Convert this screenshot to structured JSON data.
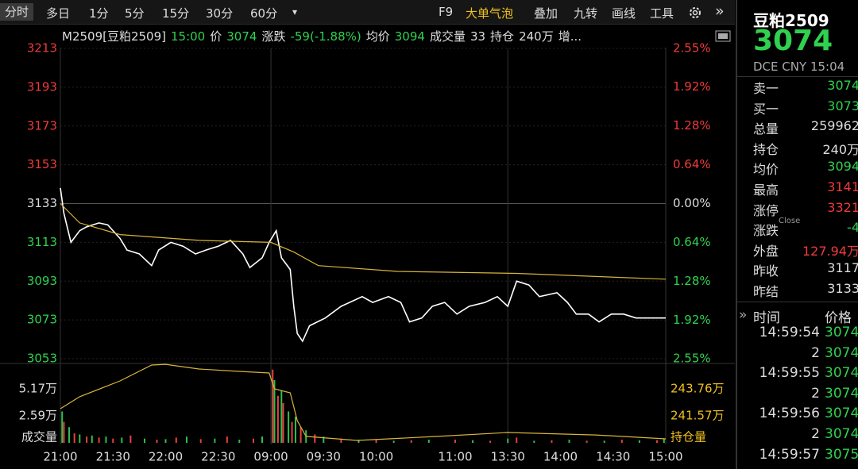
{
  "toolbar": {
    "left": [
      "分时",
      "多日",
      "1分",
      "5分",
      "15分",
      "30分",
      "60分",
      "▾"
    ],
    "right": [
      "F9",
      "大单气泡",
      "叠加",
      "九转",
      "画线",
      "工具"
    ],
    "more": "»"
  },
  "info": [
    "M2509[豆粕2509]",
    "15:00",
    "价",
    "3074",
    "涨跌",
    "-59(-1.88%)",
    "均价",
    "3094",
    "成交量",
    "33",
    "持仓",
    "240万",
    "增..."
  ],
  "chart_data": [
    {
      "type": "line",
      "ylim": [
        3053,
        3213
      ],
      "yticks": [
        3213,
        3193,
        3173,
        3153,
        3133,
        3113,
        3093,
        3073,
        3053
      ],
      "y2lim": [
        -2.55,
        2.55
      ],
      "y2ticks": [
        {
          "value": 2.55,
          "label": "2.55%"
        },
        {
          "value": 1.92,
          "label": "1.92%"
        },
        {
          "value": 1.28,
          "label": "1.28%"
        },
        {
          "value": 0.64,
          "label": "0.64%"
        },
        {
          "value": 0,
          "label": "0.00%"
        },
        {
          "value": -0.64,
          "label": "0.64%"
        },
        {
          "value": -1.28,
          "label": "1.28%"
        },
        {
          "value": -1.92,
          "label": "1.92%"
        },
        {
          "value": -2.55,
          "label": "2.55%"
        }
      ],
      "xlim": [
        0,
        345
      ],
      "grid": true,
      "series": [
        {
          "color": "#ffffff",
          "x": [
            0,
            2,
            6,
            11,
            15,
            22,
            27,
            34,
            38,
            45,
            52,
            56,
            63,
            70,
            77,
            83,
            90,
            97,
            104,
            108,
            115,
            119,
            123,
            126,
            131,
            133,
            135,
            138,
            142,
            151,
            160,
            172,
            178,
            187,
            194,
            199,
            206,
            212,
            219,
            226,
            233,
            242,
            249,
            255,
            260,
            267,
            273,
            283,
            289,
            294,
            301,
            307,
            314,
            321,
            328,
            337,
            345
          ],
          "values": [
            3141,
            3128,
            3113,
            3119,
            3121,
            3123,
            3122,
            3115,
            3109,
            3107,
            3101,
            3109,
            3113,
            3111,
            3107,
            3109,
            3111,
            3114,
            3107,
            3100,
            3105,
            3113,
            3119,
            3105,
            3099,
            3080,
            3066,
            3062,
            3070,
            3074,
            3080,
            3085,
            3082,
            3085,
            3082,
            3072,
            3074,
            3080,
            3082,
            3076,
            3080,
            3082,
            3085,
            3080,
            3093,
            3091,
            3085,
            3087,
            3082,
            3076,
            3076,
            3072,
            3076,
            3076,
            3074,
            3074,
            3074
          ]
        },
        {
          "color": "#d8b43a",
          "x": [
            0,
            11,
            34,
            79,
            120,
            133,
            147,
            192,
            260,
            345
          ],
          "values": [
            3133,
            3123,
            3117,
            3114,
            3113,
            3108,
            3101,
            3098,
            3097,
            3094
          ]
        }
      ]
    },
    {
      "type": "bar",
      "ylabel": "成交量",
      "y2label": "持仓量",
      "ylim": [
        0,
        75900
      ],
      "yticks": [
        {
          "value": 51700,
          "label": "5.17万"
        },
        {
          "value": 25900,
          "label": "2.59万"
        }
      ],
      "y2lim": [
        2393800,
        2458200
      ],
      "y2ticks": [
        {
          "value": 2437600,
          "label": "243.76万"
        },
        {
          "value": 2415700,
          "label": "241.57万"
        }
      ],
      "xlim": [
        0,
        345
      ],
      "xticks": [
        {
          "value": 0,
          "label": "21:00"
        },
        {
          "value": 30,
          "label": "21:30"
        },
        {
          "value": 60,
          "label": "22:00"
        },
        {
          "value": 90,
          "label": "22:30"
        },
        {
          "value": 120,
          "label": "09:00"
        },
        {
          "value": 150,
          "label": "09:30"
        },
        {
          "value": 180,
          "label": "10:00"
        },
        {
          "value": 225,
          "label": "11:00"
        },
        {
          "value": 255,
          "label": "13:30"
        },
        {
          "value": 285,
          "label": "14:00"
        },
        {
          "value": 315,
          "label": "14:30"
        },
        {
          "value": 345,
          "label": "15:00"
        }
      ],
      "series": [
        {
          "color": "#e8423f",
          "x": [
            2,
            8,
            15,
            22,
            30,
            40,
            55,
            66,
            80,
            95,
            110,
            121,
            124,
            127,
            132,
            137,
            145,
            160,
            180,
            200,
            225,
            245,
            260,
            280,
            300,
            320,
            340
          ],
          "values": [
            20000,
            9000,
            6000,
            5000,
            4000,
            7000,
            3000,
            5000,
            3500,
            6000,
            4000,
            70000,
            45000,
            38000,
            20000,
            15000,
            8000,
            4000,
            3000,
            2500,
            3000,
            2000,
            5000,
            2500,
            2000,
            3000,
            2500
          ]
        },
        {
          "color": "#2fbf4f",
          "x": [
            1,
            5,
            11,
            18,
            26,
            35,
            48,
            60,
            72,
            88,
            102,
            115,
            122,
            126,
            130,
            134,
            140,
            150,
            170,
            190,
            210,
            235,
            255,
            270,
            290,
            310,
            330,
            344
          ],
          "values": [
            30000,
            15000,
            8000,
            7000,
            6000,
            5000,
            4000,
            3500,
            6000,
            4000,
            3000,
            6000,
            60000,
            50000,
            30000,
            25000,
            12000,
            6000,
            3000,
            2000,
            3000,
            2500,
            4000,
            2000,
            3000,
            2000,
            2500,
            4000
          ]
        },
        {
          "type": "line",
          "axis": "y2",
          "color": "#d8b43a",
          "x": [
            0,
            11,
            34,
            52,
            60,
            79,
            101,
            119,
            122,
            131,
            135,
            140,
            169,
            215,
            255,
            305,
            345
          ],
          "values": [
            2421500,
            2431200,
            2444000,
            2456900,
            2457500,
            2453700,
            2451800,
            2450500,
            2437600,
            2434400,
            2411800,
            2399000,
            2395700,
            2399000,
            2402200,
            2400200,
            2397000
          ]
        }
      ]
    }
  ],
  "quote": {
    "title": "豆粕2509",
    "price": "3074",
    "exchange": "DCE",
    "currency": "CNY",
    "time": "15:04",
    "rows": [
      [
        "卖一",
        "3074"
      ],
      [
        "买一",
        "3073"
      ],
      [
        "总量",
        "259962"
      ],
      [
        "持仓",
        "240万"
      ],
      [
        "均价",
        "3094"
      ],
      [
        "最高",
        "3141"
      ],
      [
        "涨停",
        "3321"
      ],
      [
        "涨跌",
        "-4"
      ],
      [
        "外盘",
        "127.94万"
      ],
      [
        "昨收",
        "3117"
      ],
      [
        "昨结",
        "3133"
      ]
    ],
    "close_tag": "Close",
    "more": "»",
    "trade_header": [
      "时间",
      "价格"
    ],
    "trades": [
      [
        "14:59:54",
        "3074"
      ],
      [
        "2",
        "3074"
      ],
      [
        "14:59:55",
        "3074"
      ],
      [
        "2",
        "3074"
      ],
      [
        "14:59:56",
        "3074"
      ],
      [
        "2",
        "3074"
      ],
      [
        "14:59:57",
        "3075"
      ]
    ]
  }
}
